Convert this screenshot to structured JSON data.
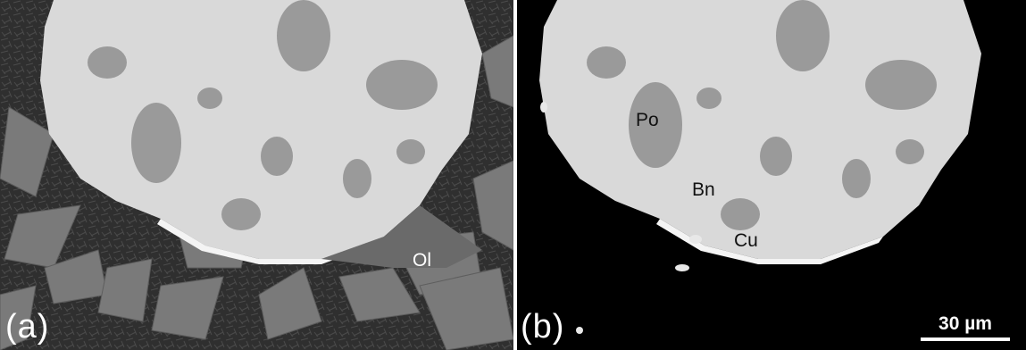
{
  "panels": [
    {
      "id": "a",
      "label": "(a)",
      "phases": [
        {
          "name": "Ol"
        }
      ]
    },
    {
      "id": "b",
      "label": "(b)",
      "phases": [
        {
          "name": "Po"
        },
        {
          "name": "Bn"
        },
        {
          "name": "Cu"
        }
      ]
    }
  ],
  "scale_bar": {
    "text": "30 µm"
  },
  "colors": {
    "matrix_a": "#3a3a3a",
    "matrix_b": "#000000",
    "bornite": "#d9d9d9",
    "pyrrhotite": "#9a9a9a",
    "copper": "#f4f4f4",
    "olivine": "#7a7a7a"
  }
}
